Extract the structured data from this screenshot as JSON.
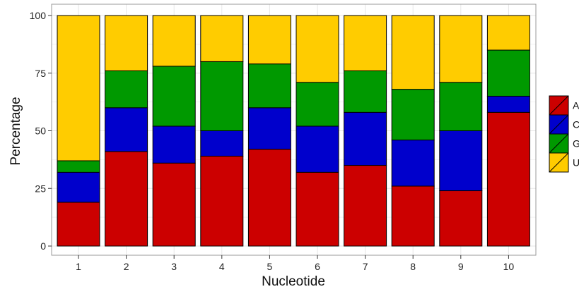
{
  "chart_data": {
    "type": "bar",
    "stacked": true,
    "xlabel": "Nucleotide",
    "ylabel": "Percentage",
    "categories": [
      "1",
      "2",
      "3",
      "4",
      "5",
      "6",
      "7",
      "8",
      "9",
      "10"
    ],
    "ylim": [
      0,
      100
    ],
    "yticks": [
      "0",
      "25",
      "50",
      "75",
      "100"
    ],
    "grid": true,
    "legend_position": "right",
    "series": [
      {
        "name": "A",
        "color": "#cc0000",
        "values": [
          19,
          41,
          36,
          39,
          42,
          32,
          35,
          26,
          24,
          58
        ]
      },
      {
        "name": "C",
        "color": "#0000cc",
        "values": [
          13,
          19,
          16,
          11,
          18,
          20,
          23,
          20,
          26,
          7
        ]
      },
      {
        "name": "G",
        "color": "#009900",
        "values": [
          5,
          16,
          26,
          30,
          19,
          19,
          18,
          22,
          21,
          20
        ]
      },
      {
        "name": "U",
        "color": "#ffcc00",
        "values": [
          63,
          24,
          22,
          20,
          21,
          29,
          24,
          32,
          29,
          15
        ]
      }
    ]
  }
}
